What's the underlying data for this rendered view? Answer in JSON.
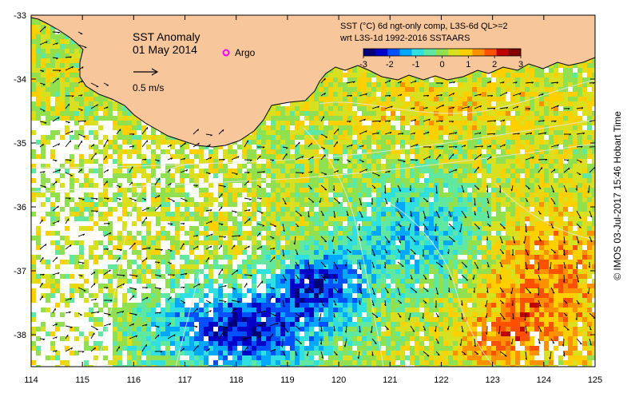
{
  "title": "SST Anomaly",
  "date": "01 May 2014",
  "argo_label": "Argo",
  "scale_vector_label": "0.5 m/s",
  "product_line1": "SST (°C) 6d ngt-only comp, L3S-6d QL>=2",
  "product_line2": "wrt L3S-1d 1992-2016 SSTAARS",
  "credit": "© IMOS 03-Jul-2017 15:46 Hobart Time",
  "colorbar": {
    "ticks": [
      "-3",
      "-2",
      "-1",
      "0",
      "1",
      "2",
      "3"
    ],
    "colors": [
      "#00007a",
      "#0000c8",
      "#0050ff",
      "#00a8ff",
      "#30e0e0",
      "#60e8a0",
      "#90e050",
      "#d8e020",
      "#ffd000",
      "#ff9000",
      "#ff5000",
      "#c00000",
      "#800000"
    ]
  },
  "axes": {
    "x_ticks": [
      "114",
      "115",
      "116",
      "117",
      "118",
      "119",
      "120",
      "121",
      "122",
      "123",
      "124",
      "125"
    ],
    "y_ticks": [
      "-33",
      "-34",
      "-35",
      "-36",
      "-37",
      "-38"
    ],
    "lon_range": [
      114,
      125
    ],
    "lat_range": [
      -38.5,
      -33
    ]
  },
  "colors": {
    "land": "#f7c69b",
    "missing": "#ffffff",
    "coast": "#000000",
    "contour": "#e8e8e8",
    "argo": "#ff00ff"
  }
}
